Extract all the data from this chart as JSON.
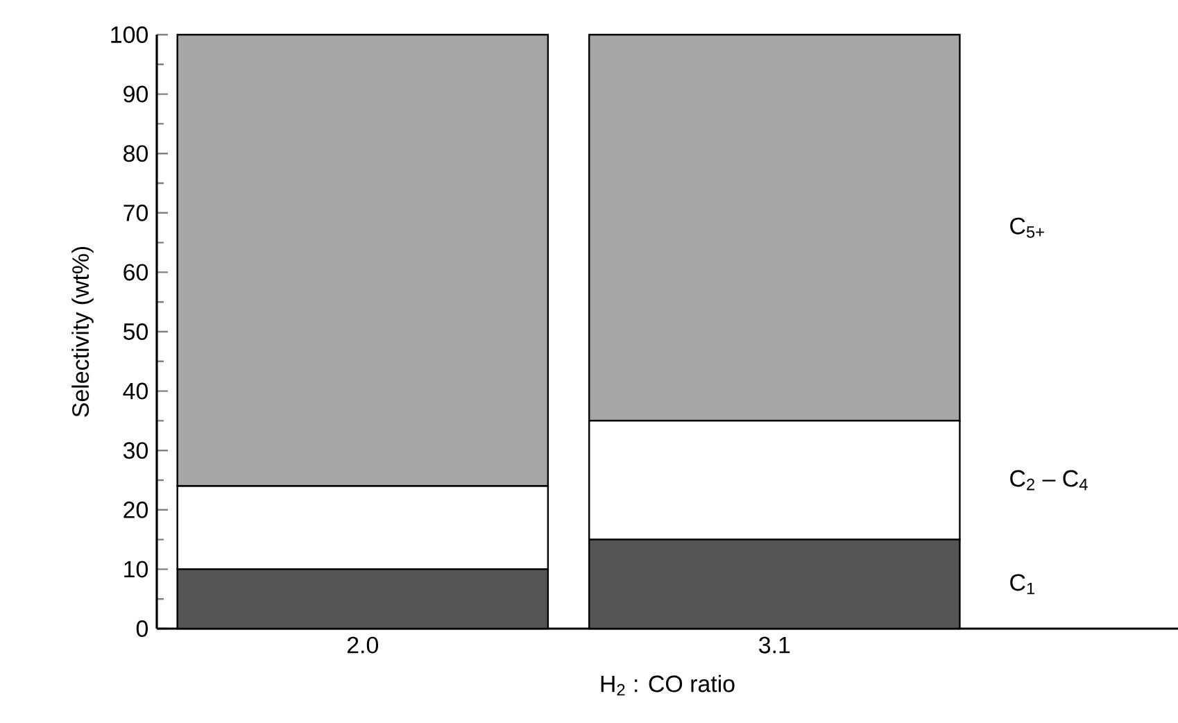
{
  "chart_data": {
    "type": "bar",
    "stacked": true,
    "categories": [
      "2.0",
      "3.1"
    ],
    "xlabel": "H$_{2}$ : CO ratio",
    "ylabel": "Selectivity (wt%)",
    "ylim": [
      0,
      100
    ],
    "yticks": [
      0,
      10,
      20,
      30,
      40,
      50,
      60,
      70,
      80,
      90,
      100
    ],
    "series": [
      {
        "name": "C$_{1}$",
        "color": "#555555",
        "values": [
          10,
          15
        ]
      },
      {
        "name": "C$_{2}$ – C$_{4}$",
        "color": "#ffffff",
        "values": [
          14,
          20
        ]
      },
      {
        "name": "C$_{5+}$",
        "color": "#a6a6a6",
        "values": [
          76,
          65
        ]
      }
    ]
  }
}
